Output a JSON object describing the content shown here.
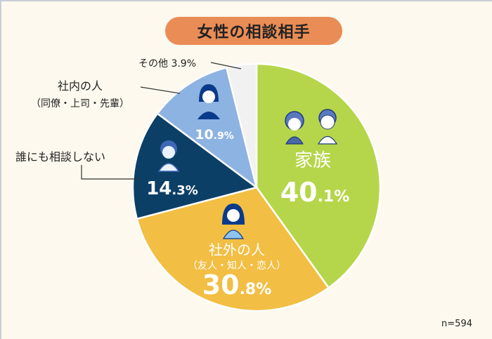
{
  "title": "女性の相談相手",
  "sample_note": "n=594",
  "colors": {
    "family": "#b5d64a",
    "outside": "#f2be43",
    "none": "#0c3f66",
    "inside": "#8db3e2",
    "other": "#f1f1f1",
    "title_bg": "#e98c55",
    "background": "#fdf9ee"
  },
  "labels": {
    "family": {
      "name": "家族",
      "value_int": "40",
      "value_dec": ".1%"
    },
    "outside": {
      "name": "社外の人",
      "sub": "（友人・知人・恋人）",
      "value_int": "30",
      "value_dec": ".8%"
    },
    "none": {
      "name": "誰にも相談しない",
      "value_int": "14",
      "value_dec": ".3%"
    },
    "inside": {
      "name": "社内の人",
      "sub": "（同僚・上司・先輩）",
      "value_int": "10",
      "value_dec": ".9%"
    },
    "other": {
      "name": "その他 3.9%"
    }
  },
  "chart_data": {
    "type": "pie",
    "title": "女性の相談相手",
    "categories": [
      "家族",
      "社外の人（友人・知人・恋人）",
      "誰にも相談しない",
      "社内の人（同僚・上司・先輩）",
      "その他"
    ],
    "values": [
      40.1,
      30.8,
      14.3,
      10.9,
      3.9
    ],
    "unit": "%",
    "start_angle": "12 o'clock, clockwise",
    "annotations": [
      "n=594"
    ],
    "legend": "none (direct labels)"
  }
}
